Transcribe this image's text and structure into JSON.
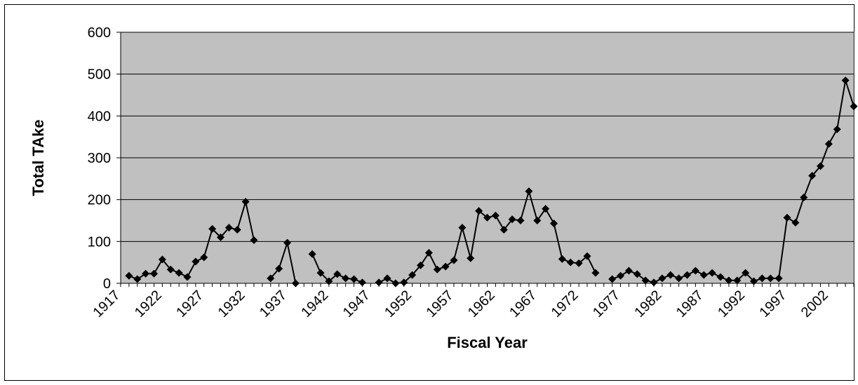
{
  "chart_data": {
    "type": "line",
    "title": "",
    "xlabel": "Fiscal Year",
    "ylabel": "Total TAke",
    "ylim": [
      0,
      600
    ],
    "yticks": [
      0,
      100,
      200,
      300,
      400,
      500,
      600
    ],
    "xlim": [
      1917,
      2005
    ],
    "xticks": [
      1917,
      1922,
      1927,
      1932,
      1937,
      1942,
      1947,
      1952,
      1957,
      1962,
      1967,
      1972,
      1977,
      1982,
      1987,
      1992,
      1997,
      2002
    ],
    "grid": true,
    "legend": "none",
    "series": [
      {
        "marker": "diamond",
        "color": "#000000",
        "points": [
          [
            1918,
            18
          ],
          [
            1919,
            10
          ],
          [
            1920,
            23
          ],
          [
            1921,
            23
          ],
          [
            1922,
            57
          ],
          [
            1923,
            33
          ],
          [
            1924,
            25
          ],
          [
            1925,
            15
          ],
          [
            1926,
            52
          ],
          [
            1927,
            62
          ],
          [
            1928,
            130
          ],
          [
            1929,
            110
          ],
          [
            1930,
            133
          ],
          [
            1931,
            128
          ],
          [
            1932,
            195
          ],
          [
            1933,
            103
          ],
          [
            1935,
            12
          ],
          [
            1936,
            35
          ],
          [
            1937,
            97
          ],
          [
            1938,
            0
          ],
          [
            1940,
            70
          ],
          [
            1941,
            25
          ],
          [
            1942,
            5
          ],
          [
            1943,
            22
          ],
          [
            1944,
            12
          ],
          [
            1945,
            10
          ],
          [
            1946,
            2
          ],
          [
            1948,
            2
          ],
          [
            1949,
            12
          ],
          [
            1950,
            0
          ],
          [
            1951,
            2
          ],
          [
            1952,
            20
          ],
          [
            1953,
            43
          ],
          [
            1954,
            73
          ],
          [
            1955,
            33
          ],
          [
            1956,
            40
          ],
          [
            1957,
            55
          ],
          [
            1958,
            133
          ],
          [
            1959,
            60
          ],
          [
            1960,
            173
          ],
          [
            1961,
            157
          ],
          [
            1962,
            162
          ],
          [
            1963,
            128
          ],
          [
            1964,
            153
          ],
          [
            1965,
            150
          ],
          [
            1966,
            220
          ],
          [
            1967,
            150
          ],
          [
            1968,
            178
          ],
          [
            1969,
            143
          ],
          [
            1970,
            58
          ],
          [
            1971,
            50
          ],
          [
            1972,
            48
          ],
          [
            1973,
            65
          ],
          [
            1974,
            25
          ],
          [
            1976,
            10
          ],
          [
            1977,
            18
          ],
          [
            1978,
            30
          ],
          [
            1979,
            22
          ],
          [
            1980,
            7
          ],
          [
            1981,
            2
          ],
          [
            1982,
            12
          ],
          [
            1983,
            20
          ],
          [
            1984,
            12
          ],
          [
            1985,
            20
          ],
          [
            1986,
            30
          ],
          [
            1987,
            20
          ],
          [
            1988,
            25
          ],
          [
            1989,
            15
          ],
          [
            1990,
            7
          ],
          [
            1991,
            7
          ],
          [
            1992,
            25
          ],
          [
            1993,
            5
          ],
          [
            1994,
            12
          ],
          [
            1995,
            12
          ],
          [
            1996,
            12
          ],
          [
            1997,
            157
          ],
          [
            1998,
            145
          ],
          [
            1999,
            205
          ],
          [
            2000,
            257
          ],
          [
            2001,
            280
          ],
          [
            2002,
            333
          ],
          [
            2003,
            368
          ],
          [
            2004,
            485
          ],
          [
            2005,
            423
          ]
        ]
      }
    ]
  }
}
